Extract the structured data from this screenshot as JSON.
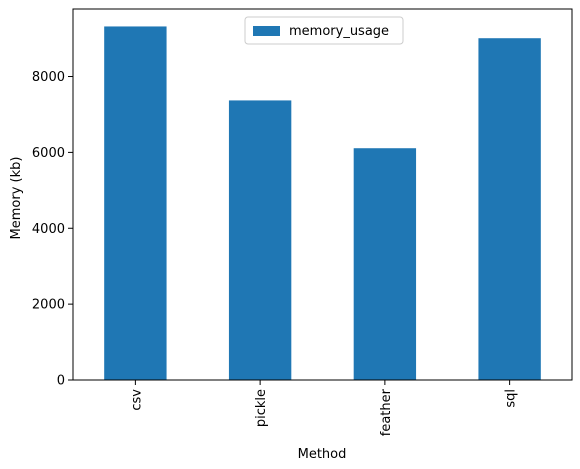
{
  "chart_data": {
    "type": "bar",
    "categories": [
      "csv",
      "pickle",
      "feather",
      "sql"
    ],
    "series": [
      {
        "name": "memory_usage",
        "values": [
          9320,
          7370,
          6110,
          9010
        ]
      }
    ],
    "xlabel": "Method",
    "ylabel": "Memory (kb)",
    "ylim": [
      0,
      9780
    ],
    "yticks": [
      0,
      2000,
      4000,
      6000,
      8000
    ],
    "grid": false,
    "legend_position": "upper center",
    "colors": {
      "bar": "#1f77b4",
      "axis": "#000000",
      "legend_border": "#cccccc",
      "background": "#ffffff"
    }
  }
}
